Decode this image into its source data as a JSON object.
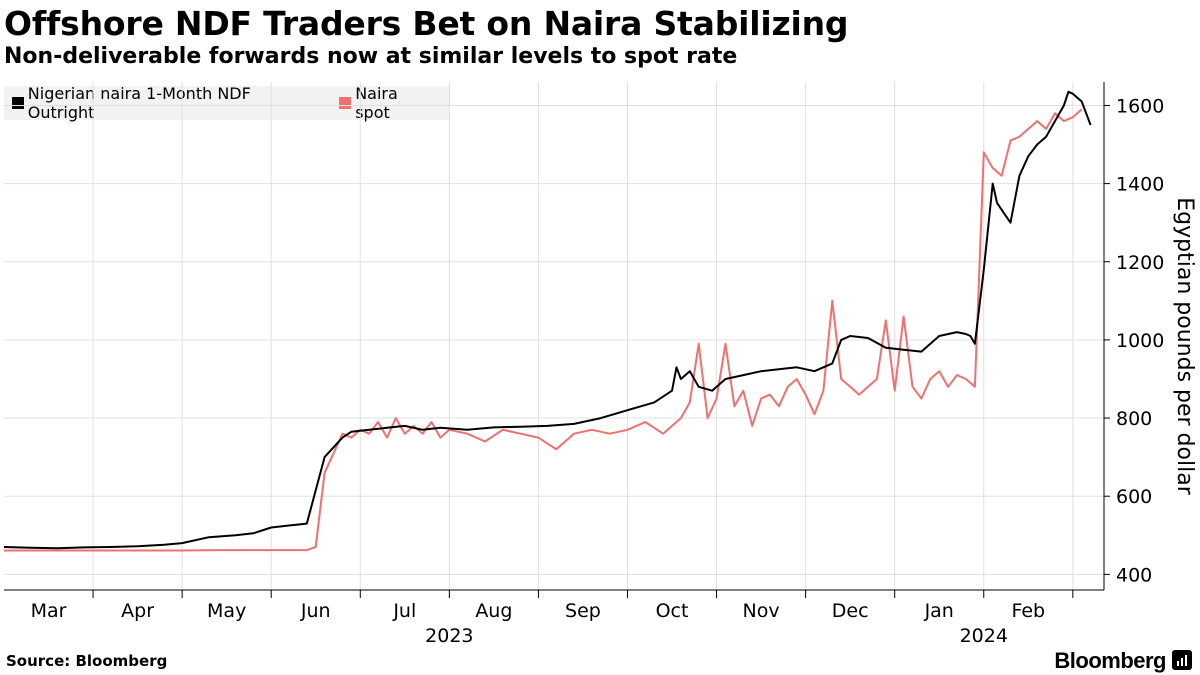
{
  "title": "Offshore NDF Traders Bet on Naira Stabilizing",
  "subtitle": "Non-deliverable forwards now at similar levels to spot rate",
  "source": "Source: Bloomberg",
  "brand": "Bloomberg",
  "colors": {
    "ndf": "#000000",
    "spot": "#f07070",
    "grid": "#e0e0e0"
  },
  "chart_data": {
    "type": "line",
    "title": "Offshore NDF Traders Bet on Naira Stabilizing",
    "subtitle": "Non-deliverable forwards now at similar levels to spot rate",
    "xlabel": "",
    "ylabel": "Egyptian pounds per dollar",
    "ylim": [
      360,
      1660
    ],
    "yticks": [
      400,
      600,
      800,
      1000,
      1200,
      1400,
      1600
    ],
    "x_domain": [
      0,
      12.35
    ],
    "x_ticks": [
      {
        "label": "Mar",
        "pos": 0.5
      },
      {
        "label": "Apr",
        "pos": 1.5
      },
      {
        "label": "May",
        "pos": 2.5
      },
      {
        "label": "Jun",
        "pos": 3.5
      },
      {
        "label": "Jul",
        "pos": 4.5
      },
      {
        "label": "Aug",
        "pos": 5.5
      },
      {
        "label": "Sep",
        "pos": 6.5
      },
      {
        "label": "Oct",
        "pos": 7.5
      },
      {
        "label": "Nov",
        "pos": 8.5
      },
      {
        "label": "Dec",
        "pos": 9.5
      },
      {
        "label": "Jan",
        "pos": 10.5
      },
      {
        "label": "Feb",
        "pos": 11.5
      }
    ],
    "month_boundaries": [
      1,
      2,
      3,
      4,
      5,
      6,
      7,
      8,
      9,
      10,
      11,
      12
    ],
    "year_labels": [
      {
        "label": "2023",
        "pos": 5.0
      },
      {
        "label": "2024",
        "pos": 11.0
      }
    ],
    "legend": [
      "Nigerian naira 1-Month NDF Outright",
      "Naira spot"
    ],
    "grid": true,
    "series": [
      {
        "name": "Nigerian naira 1-Month NDF Outright",
        "x": [
          0,
          0.3,
          0.6,
          0.9,
          1.2,
          1.5,
          1.8,
          2.0,
          2.3,
          2.6,
          2.8,
          3.0,
          3.2,
          3.4,
          3.6,
          3.8,
          3.9,
          4.1,
          4.3,
          4.5,
          4.7,
          4.9,
          5.2,
          5.5,
          5.8,
          6.1,
          6.4,
          6.7,
          7.0,
          7.3,
          7.5,
          7.55,
          7.6,
          7.7,
          7.8,
          7.95,
          8.1,
          8.3,
          8.5,
          8.7,
          8.9,
          9.1,
          9.3,
          9.4,
          9.5,
          9.7,
          9.9,
          10.1,
          10.3,
          10.5,
          10.7,
          10.8,
          10.85,
          10.9,
          11.0,
          11.1,
          11.15,
          11.3,
          11.4,
          11.5,
          11.6,
          11.7,
          11.8,
          11.9,
          11.95,
          12.0,
          12.1,
          12.2
        ],
        "values": [
          470,
          468,
          467,
          469,
          470,
          472,
          476,
          480,
          495,
          500,
          505,
          520,
          525,
          530,
          700,
          750,
          765,
          770,
          775,
          780,
          770,
          775,
          770,
          776,
          778,
          780,
          785,
          800,
          820,
          840,
          870,
          930,
          900,
          920,
          880,
          870,
          900,
          910,
          920,
          925,
          930,
          920,
          940,
          1000,
          1010,
          1005,
          980,
          975,
          970,
          1010,
          1020,
          1015,
          1010,
          990,
          1180,
          1400,
          1350,
          1300,
          1420,
          1470,
          1500,
          1520,
          1560,
          1600,
          1635,
          1630,
          1610,
          1550
        ]
      },
      {
        "name": "Naira spot",
        "x": [
          0,
          0.4,
          0.8,
          1.2,
          1.6,
          2.0,
          2.4,
          2.8,
          3.2,
          3.4,
          3.5,
          3.6,
          3.8,
          3.9,
          4.0,
          4.1,
          4.2,
          4.3,
          4.4,
          4.5,
          4.6,
          4.7,
          4.8,
          4.9,
          5.0,
          5.2,
          5.4,
          5.6,
          5.8,
          6.0,
          6.2,
          6.4,
          6.6,
          6.8,
          7.0,
          7.2,
          7.4,
          7.5,
          7.6,
          7.7,
          7.8,
          7.9,
          8.0,
          8.1,
          8.2,
          8.3,
          8.4,
          8.5,
          8.6,
          8.7,
          8.8,
          8.9,
          9.0,
          9.1,
          9.2,
          9.3,
          9.4,
          9.5,
          9.6,
          9.7,
          9.8,
          9.9,
          10.0,
          10.1,
          10.2,
          10.3,
          10.4,
          10.5,
          10.6,
          10.7,
          10.8,
          10.9,
          11.0,
          11.05,
          11.1,
          11.2,
          11.3,
          11.4,
          11.5,
          11.6,
          11.7,
          11.8,
          11.9,
          12.0,
          12.1
        ],
        "values": [
          461,
          461,
          461,
          461,
          461,
          461,
          462,
          462,
          462,
          462,
          470,
          660,
          760,
          750,
          770,
          760,
          790,
          750,
          800,
          760,
          780,
          760,
          790,
          750,
          770,
          760,
          740,
          770,
          760,
          750,
          720,
          760,
          770,
          760,
          770,
          790,
          760,
          780,
          800,
          840,
          990,
          800,
          850,
          990,
          830,
          870,
          780,
          850,
          860,
          830,
          880,
          900,
          860,
          810,
          870,
          1100,
          900,
          880,
          860,
          880,
          900,
          1050,
          870,
          1060,
          880,
          850,
          900,
          920,
          880,
          910,
          900,
          880,
          1480,
          1460,
          1440,
          1420,
          1510,
          1520,
          1540,
          1560,
          1540,
          1580,
          1560,
          1570,
          1590
        ]
      }
    ]
  }
}
